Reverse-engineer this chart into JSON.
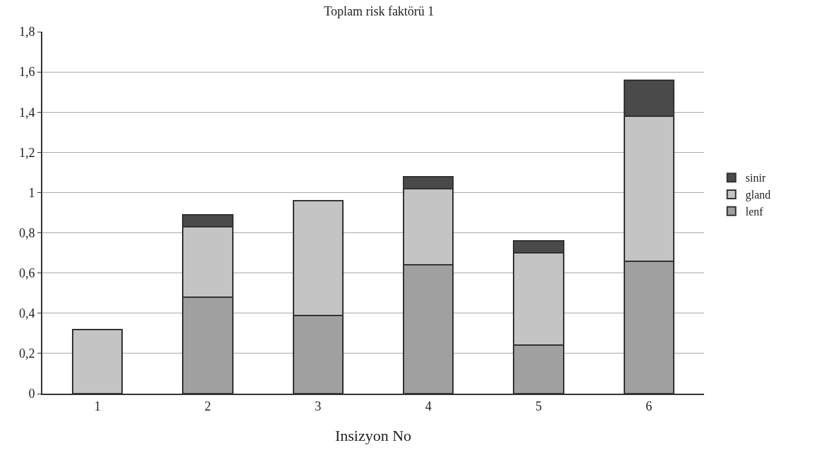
{
  "chart_data": {
    "type": "bar",
    "title": "Toplam risk faktörü 1",
    "xlabel": "Insizyon No",
    "stacked": true,
    "grid": "y",
    "legend": "right",
    "categories": [
      "1",
      "2",
      "3",
      "4",
      "5",
      "6"
    ],
    "series": [
      {
        "name": "lenf",
        "color": "#a0a0a0",
        "values": [
          null,
          0.48,
          0.39,
          0.64,
          0.24,
          0.66
        ]
      },
      {
        "name": "gland",
        "color": "#c4c4c4",
        "values": [
          0.32,
          0.35,
          0.57,
          0.38,
          0.46,
          0.72
        ]
      },
      {
        "name": "sinir",
        "color": "#4a4a4a",
        "values": [
          null,
          0.06,
          null,
          0.06,
          0.06,
          0.18
        ]
      }
    ],
    "ylim": [
      0,
      1.8
    ],
    "yticks": [
      0,
      {
        "value": 0.2,
        "label": "0,2"
      },
      {
        "value": 0.4,
        "label": "0,4"
      },
      {
        "value": 0.6,
        "label": "0,6"
      },
      {
        "value": 0.8,
        "label": "0,8"
      },
      1,
      {
        "value": 1.2,
        "label": "1,2"
      },
      {
        "value": 1.4,
        "label": "1,4"
      },
      {
        "value": 1.6,
        "label": "1,6"
      },
      {
        "value": 1.8,
        "label": "1,8"
      }
    ]
  }
}
